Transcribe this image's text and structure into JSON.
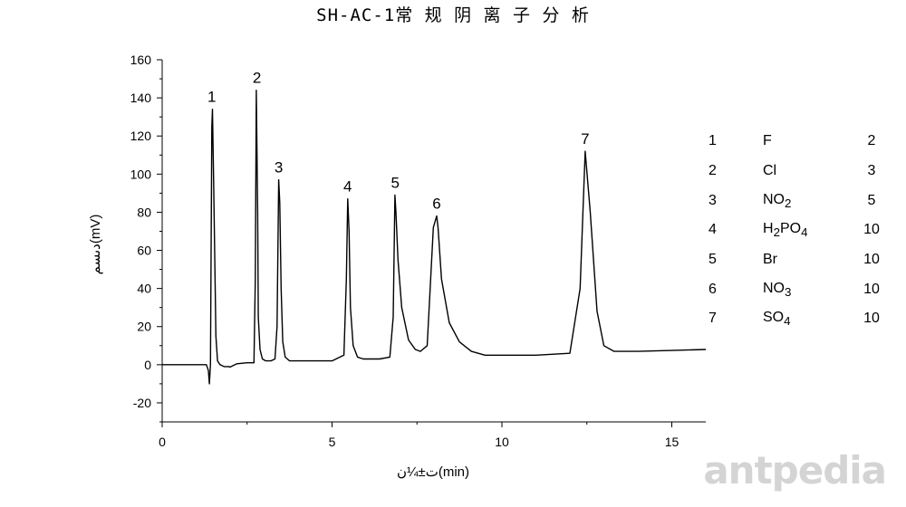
{
  "chart_data": {
    "type": "line",
    "title": "SH-AC-1常 规 阴 离 子 分 析",
    "xlabel": "ت±¼ن(min)",
    "ylabel": "دىسم(mV)",
    "xlim": [
      0,
      16
    ],
    "ylim": [
      -30,
      160
    ],
    "x_ticks": [
      0,
      5,
      10,
      15
    ],
    "y_ticks": [
      -20,
      0,
      20,
      40,
      60,
      80,
      100,
      120,
      140,
      160
    ],
    "grid": false,
    "series": [
      {
        "x": [
          0,
          0.6,
          1.2,
          1.3,
          1.36,
          1.39,
          1.42,
          1.46,
          1.48,
          1.52,
          1.58,
          1.63,
          1.7,
          1.82,
          1.96,
          2.0,
          2.2,
          2.5,
          2.7,
          2.74,
          2.77,
          2.81,
          2.83,
          2.88,
          2.95,
          3.05,
          3.2,
          3.32,
          3.38,
          3.43,
          3.46,
          3.5,
          3.55,
          3.62,
          3.75,
          3.9,
          4.1,
          4.5,
          5.0,
          5.35,
          5.42,
          5.46,
          5.5,
          5.54,
          5.62,
          5.75,
          5.92,
          6.1,
          6.4,
          6.7,
          6.8,
          6.85,
          6.88,
          6.94,
          7.05,
          7.25,
          7.45,
          7.6,
          7.8,
          7.98,
          8.08,
          8.12,
          8.22,
          8.45,
          8.75,
          9.1,
          9.5,
          10.0,
          11.0,
          12.0,
          12.3,
          12.45,
          12.6,
          12.8,
          13.0,
          13.3,
          14.0,
          15.0,
          16.0
        ],
        "y": [
          0,
          0,
          0,
          0,
          -3,
          -10,
          0,
          125,
          134,
          90,
          15,
          2,
          0,
          -1,
          -1,
          -1.2,
          0.5,
          1,
          1,
          45,
          144,
          80,
          25,
          8,
          3,
          2,
          2,
          3,
          20,
          97,
          85,
          40,
          12,
          4,
          2,
          2,
          2,
          2,
          2,
          5,
          45,
          87,
          70,
          30,
          10,
          4,
          3,
          3,
          3,
          4,
          25,
          89,
          80,
          55,
          30,
          13,
          8,
          7,
          10,
          72,
          78,
          72,
          45,
          22,
          12,
          7,
          5,
          5,
          5,
          6,
          40,
          112,
          80,
          28,
          10,
          7,
          7,
          7.5,
          8
        ]
      }
    ],
    "peak_labels": [
      {
        "label": "1",
        "x": 1.46,
        "y": 134
      },
      {
        "label": "2",
        "x": 2.79,
        "y": 144
      },
      {
        "label": "3",
        "x": 3.43,
        "y": 97
      },
      {
        "label": "4",
        "x": 5.46,
        "y": 87
      },
      {
        "label": "5",
        "x": 6.86,
        "y": 89
      },
      {
        "label": "6",
        "x": 8.08,
        "y": 78
      },
      {
        "label": "7",
        "x": 12.45,
        "y": 112
      }
    ],
    "legend_table": [
      {
        "num": "1",
        "ion": "F",
        "sub": [],
        "conc": "2"
      },
      {
        "num": "2",
        "ion": "Cl",
        "sub": [],
        "conc": "3"
      },
      {
        "num": "3",
        "ion": "NO",
        "sub": [
          [
            "2",
            ""
          ]
        ],
        "conc": "5"
      },
      {
        "num": "4",
        "ion": "H",
        "sub": [
          [
            "2",
            "PO"
          ],
          [
            "4",
            ""
          ]
        ],
        "conc": "10"
      },
      {
        "num": "5",
        "ion": "Br",
        "sub": [],
        "conc": "10"
      },
      {
        "num": "6",
        "ion": "NO",
        "sub": [
          [
            "3",
            ""
          ]
        ],
        "conc": "10"
      },
      {
        "num": "7",
        "ion": "SO",
        "sub": [
          [
            "4",
            ""
          ]
        ],
        "conc": "10"
      }
    ]
  },
  "watermark": "antpedia"
}
